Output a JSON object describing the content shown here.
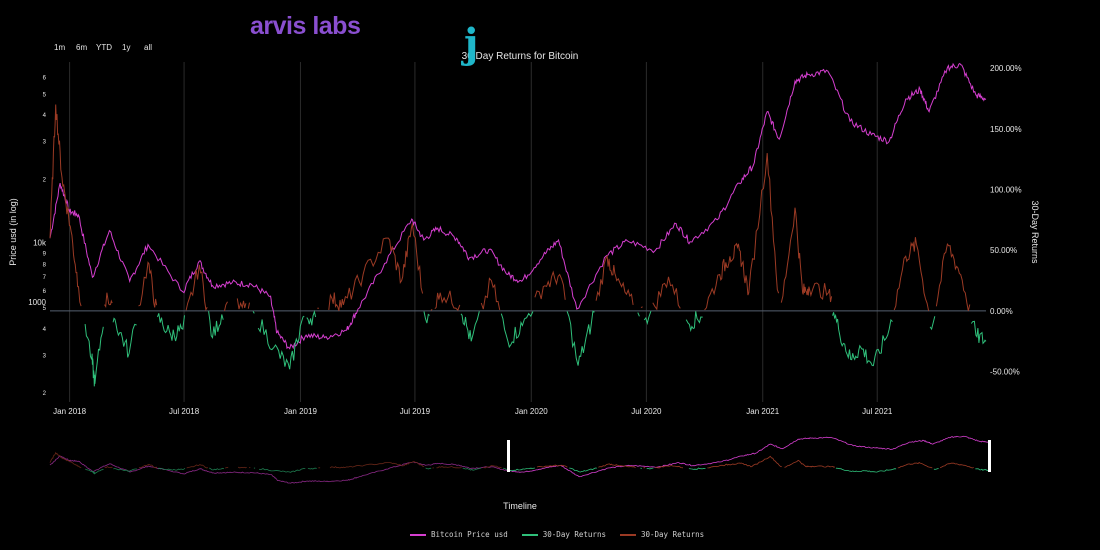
{
  "logo": {
    "j": "j",
    "rest": "arvis labs"
  },
  "range_buttons": [
    "1m",
    "6m",
    "YTD",
    "1y",
    "all"
  ],
  "chart_data": {
    "type": "line",
    "title": "30 Day Returns for Bitcoin",
    "xlabel": "Timeline",
    "ylabel_left": "Price usd (in log)",
    "ylabel_right": "30-Day Returns",
    "x_ticks": [
      "Jan 2018",
      "Jul 2018",
      "Jan 2019",
      "Jul 2019",
      "Jan 2020",
      "Jul 2020",
      "Jan 2021",
      "Jul 2021"
    ],
    "x_range": [
      "2017-12-01",
      "2021-12-20"
    ],
    "y_left_scale": "log",
    "y_left_range": [
      1800,
      70000
    ],
    "y_left_ticks": [
      {
        "v": 2000,
        "t": "2"
      },
      {
        "v": 3000,
        "t": "3"
      },
      {
        "v": 4000,
        "t": "4"
      },
      {
        "v": 5000,
        "t": "5"
      },
      {
        "v": 6000,
        "t": "6"
      },
      {
        "v": 7000,
        "t": "7"
      },
      {
        "v": 8000,
        "t": "8"
      },
      {
        "v": 9000,
        "t": "9"
      },
      {
        "v": 10000,
        "t": "10k"
      },
      {
        "v": 20000,
        "t": "2"
      },
      {
        "v": 30000,
        "t": "3"
      },
      {
        "v": 40000,
        "t": "4"
      },
      {
        "v": 50000,
        "t": "5"
      },
      {
        "v": 60000,
        "t": "6"
      }
    ],
    "y_left_lower_ticks": [
      {
        "v": 1000,
        "t": "1000"
      }
    ],
    "y_right_range": [
      -75,
      205
    ],
    "y_right_ticks": [
      {
        "v": 200,
        "t": "200.00%"
      },
      {
        "v": 150,
        "t": "150.00%"
      },
      {
        "v": 100,
        "t": "100.00%"
      },
      {
        "v": 50,
        "t": "50.00%"
      },
      {
        "v": 0,
        "t": "0.00%"
      },
      {
        "v": -50,
        "t": "-50.00%"
      }
    ],
    "grid": true,
    "legend_position": "bottom",
    "series": [
      {
        "name": "Bitcoin Price usd",
        "axis": "left",
        "color": "#d63fd0",
        "points": [
          [
            "2017-12-01",
            10500
          ],
          [
            "2017-12-17",
            19000
          ],
          [
            "2018-01-01",
            14000
          ],
          [
            "2018-01-15",
            13500
          ],
          [
            "2018-02-06",
            6900
          ],
          [
            "2018-03-05",
            11400
          ],
          [
            "2018-04-06",
            6600
          ],
          [
            "2018-05-05",
            9800
          ],
          [
            "2018-06-29",
            5900
          ],
          [
            "2018-07-25",
            8200
          ],
          [
            "2018-08-15",
            6300
          ],
          [
            "2018-09-15",
            6500
          ],
          [
            "2018-10-15",
            6400
          ],
          [
            "2018-11-14",
            5600
          ],
          [
            "2018-11-25",
            3800
          ],
          [
            "2018-12-15",
            3200
          ],
          [
            "2019-01-10",
            3700
          ],
          [
            "2019-02-08",
            3600
          ],
          [
            "2019-03-15",
            3900
          ],
          [
            "2019-04-02",
            4900
          ],
          [
            "2019-05-14",
            8000
          ],
          [
            "2019-06-26",
            12900
          ],
          [
            "2019-07-15",
            10300
          ],
          [
            "2019-08-06",
            11700
          ],
          [
            "2019-09-05",
            10500
          ],
          [
            "2019-09-25",
            8500
          ],
          [
            "2019-10-26",
            9300
          ],
          [
            "2019-11-25",
            7100
          ],
          [
            "2019-12-17",
            6600
          ],
          [
            "2020-01-20",
            8700
          ],
          [
            "2020-02-13",
            10300
          ],
          [
            "2020-03-13",
            4900
          ],
          [
            "2020-04-29",
            8700
          ],
          [
            "2020-06-01",
            10200
          ],
          [
            "2020-07-15",
            9200
          ],
          [
            "2020-08-17",
            12300
          ],
          [
            "2020-09-08",
            10100
          ],
          [
            "2020-10-21",
            12800
          ],
          [
            "2020-11-25",
            19000
          ],
          [
            "2020-12-17",
            23000
          ],
          [
            "2021-01-08",
            41000
          ],
          [
            "2021-01-27",
            30500
          ],
          [
            "2021-02-21",
            57000
          ],
          [
            "2021-03-13",
            61000
          ],
          [
            "2021-04-14",
            63500
          ],
          [
            "2021-05-19",
            37000
          ],
          [
            "2021-06-22",
            32000
          ],
          [
            "2021-07-20",
            29800
          ],
          [
            "2021-08-15",
            47000
          ],
          [
            "2021-09-07",
            52000
          ],
          [
            "2021-09-21",
            41000
          ],
          [
            "2021-10-20",
            66000
          ],
          [
            "2021-11-10",
            68000
          ],
          [
            "2021-12-04",
            49000
          ],
          [
            "2021-12-20",
            47000
          ]
        ]
      },
      {
        "name": "30-Day Returns",
        "axis": "right",
        "color": "#2fbf7a",
        "note": "negative"
      },
      {
        "name": "30-Day Returns",
        "axis": "right",
        "color": "#9b3a24",
        "points": [
          [
            "2017-12-01",
            60
          ],
          [
            "2017-12-10",
            170
          ],
          [
            "2017-12-20",
            110
          ],
          [
            "2018-01-02",
            70
          ],
          [
            "2018-01-15",
            20
          ],
          [
            "2018-02-05",
            -40
          ],
          [
            "2018-02-10",
            -60
          ],
          [
            "2018-03-01",
            15
          ],
          [
            "2018-03-15",
            -10
          ],
          [
            "2018-04-05",
            -35
          ],
          [
            "2018-05-05",
            40
          ],
          [
            "2018-05-20",
            -5
          ],
          [
            "2018-06-10",
            -20
          ],
          [
            "2018-06-29",
            -15
          ],
          [
            "2018-07-25",
            38
          ],
          [
            "2018-08-15",
            -22
          ],
          [
            "2018-09-05",
            5
          ],
          [
            "2018-10-01",
            3
          ],
          [
            "2018-10-20",
            -2
          ],
          [
            "2018-11-20",
            -30
          ],
          [
            "2018-12-15",
            -48
          ],
          [
            "2019-01-05",
            -5
          ],
          [
            "2019-01-25",
            -5
          ],
          [
            "2019-02-20",
            10
          ],
          [
            "2019-03-10",
            5
          ],
          [
            "2019-04-10",
            30
          ],
          [
            "2019-05-20",
            60
          ],
          [
            "2019-06-10",
            25
          ],
          [
            "2019-06-27",
            72
          ],
          [
            "2019-07-20",
            -10
          ],
          [
            "2019-08-10",
            15
          ],
          [
            "2019-09-10",
            5
          ],
          [
            "2019-09-28",
            -25
          ],
          [
            "2019-10-30",
            25
          ],
          [
            "2019-11-25",
            -25
          ],
          [
            "2019-12-18",
            -12
          ],
          [
            "2020-01-20",
            20
          ],
          [
            "2020-02-15",
            30
          ],
          [
            "2020-03-15",
            -45
          ],
          [
            "2020-04-05",
            -10
          ],
          [
            "2020-04-30",
            45
          ],
          [
            "2020-05-15",
            25
          ],
          [
            "2020-06-10",
            5
          ],
          [
            "2020-07-05",
            -5
          ],
          [
            "2020-08-05",
            28
          ],
          [
            "2020-09-05",
            -10
          ],
          [
            "2020-09-25",
            -5
          ],
          [
            "2020-10-25",
            30
          ],
          [
            "2020-11-10",
            45
          ],
          [
            "2020-11-25",
            50
          ],
          [
            "2020-12-10",
            15
          ],
          [
            "2021-01-08",
            130
          ],
          [
            "2021-01-28",
            -5
          ],
          [
            "2021-02-21",
            85
          ],
          [
            "2021-03-05",
            15
          ],
          [
            "2021-03-15",
            20
          ],
          [
            "2021-04-15",
            15
          ],
          [
            "2021-05-01",
            -15
          ],
          [
            "2021-05-20",
            -40
          ],
          [
            "2021-06-05",
            -30
          ],
          [
            "2021-06-25",
            -45
          ],
          [
            "2021-07-20",
            -15
          ],
          [
            "2021-08-15",
            45
          ],
          [
            "2021-09-01",
            55
          ],
          [
            "2021-09-25",
            -15
          ],
          [
            "2021-10-20",
            55
          ],
          [
            "2021-11-10",
            30
          ],
          [
            "2021-12-04",
            -20
          ],
          [
            "2021-12-20",
            -25
          ]
        ]
      }
    ]
  },
  "legend": [
    {
      "label": "Bitcoin Price usd",
      "color": "#d63fd0"
    },
    {
      "label": "30-Day Returns",
      "color": "#2fbf7a"
    },
    {
      "label": "30-Day Returns",
      "color": "#9b3a24"
    }
  ]
}
